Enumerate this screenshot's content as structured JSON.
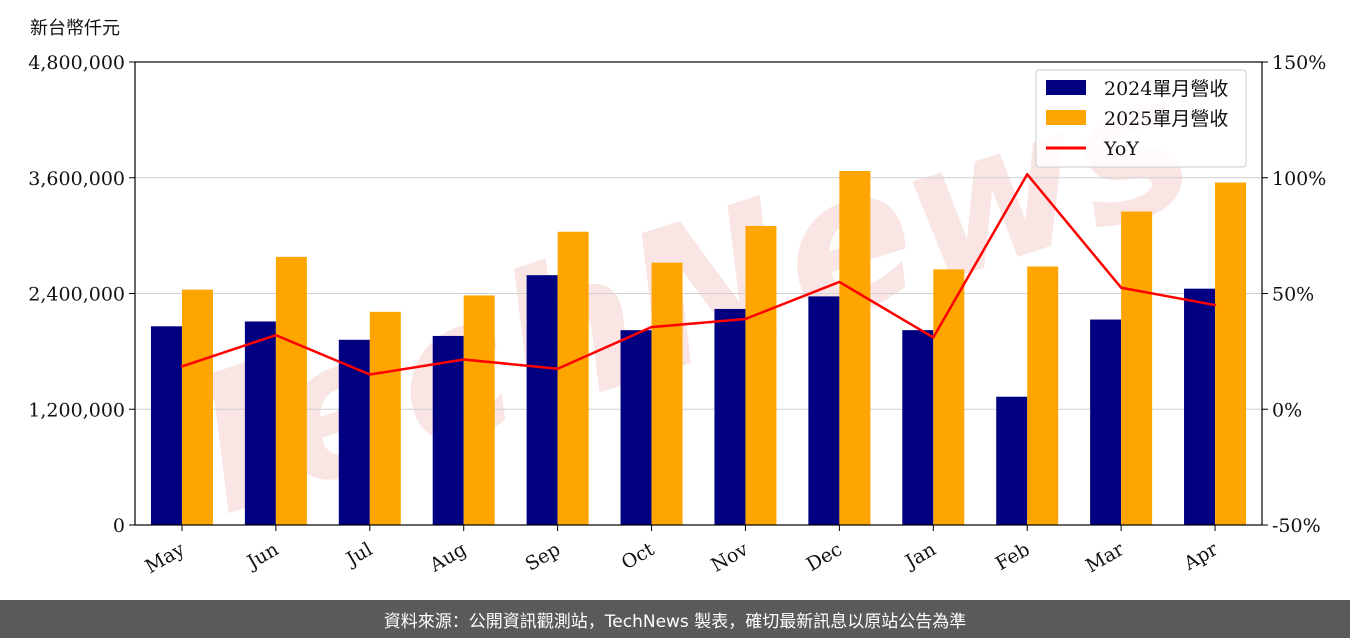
{
  "unit_label": "新台幣仟元",
  "footer_text": "資料來源：公開資訊觀測站，TechNews 製表，確切最新訊息以原站公告為準",
  "watermark": "TechNews",
  "chart_data": {
    "type": "bar",
    "categories": [
      "May",
      "Jun",
      "Jul",
      "Aug",
      "Sep",
      "Oct",
      "Nov",
      "Dec",
      "Jan",
      "Feb",
      "Mar",
      "Apr"
    ],
    "series": [
      {
        "name": "2024單月營收",
        "type": "bar",
        "color": "#000080",
        "axis": "left",
        "values": [
          2060000,
          2110000,
          1920000,
          1960000,
          2590000,
          2020000,
          2240000,
          2370000,
          2020000,
          1330000,
          2130000,
          2450000
        ]
      },
      {
        "name": "2025單月營收",
        "type": "bar",
        "color": "#ffa500",
        "axis": "left",
        "values": [
          2440000,
          2780000,
          2210000,
          2380000,
          3040000,
          2720000,
          3100000,
          3670000,
          2650000,
          2680000,
          3250000,
          3550000
        ]
      },
      {
        "name": "YoY",
        "type": "line",
        "color": "#ff0000",
        "axis": "right",
        "values": [
          18.5,
          32,
          15,
          21.5,
          17.5,
          35.5,
          39,
          55,
          31,
          101.5,
          52.5,
          45
        ]
      }
    ],
    "ylim": [
      0,
      4800000
    ],
    "y2lim": [
      -50,
      150
    ],
    "yticks": [
      "0",
      "1,200,000",
      "2,400,000",
      "3,600,000",
      "4,800,000"
    ],
    "y2ticks": [
      "-50%",
      "0%",
      "50%",
      "100%",
      "150%"
    ],
    "grid": true,
    "legend_position": "top-right"
  }
}
